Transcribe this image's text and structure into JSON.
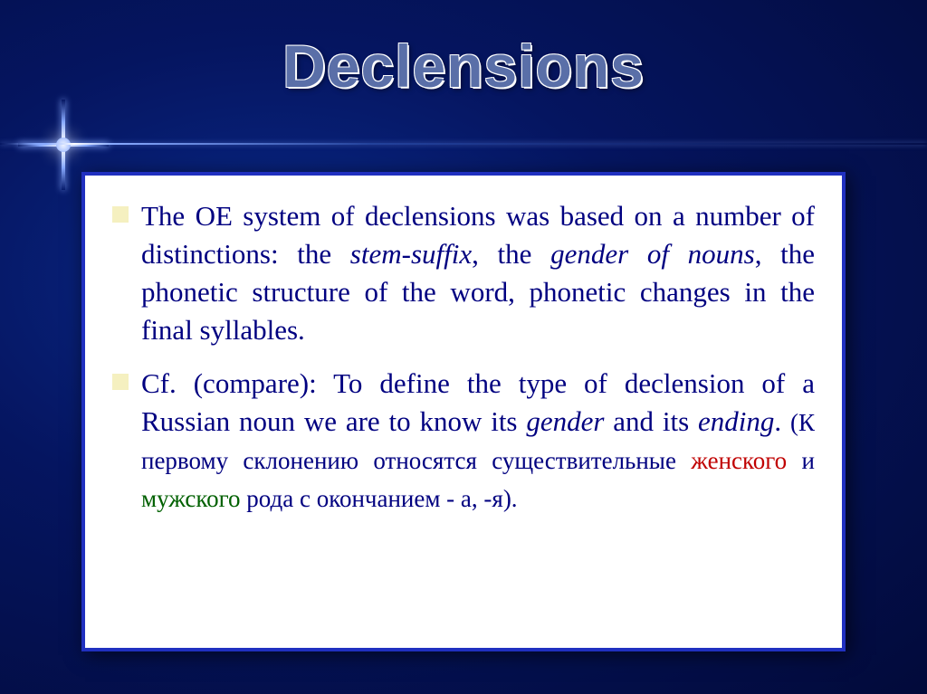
{
  "title": "Declensions",
  "background": {
    "gradient_center": "#0a2a8a",
    "gradient_mid": "#051560",
    "gradient_edge": "#020a3a"
  },
  "content_box": {
    "background": "#ffffff",
    "border_color": "#2030c0",
    "border_width": 4
  },
  "bullet_color": "#f5f0c0",
  "text_color": "#000080",
  "title_color": "#5a6fa8",
  "title_fontsize": 66,
  "body_fontsize": 31,
  "small_fontsize": 27,
  "red_color": "#c00000",
  "green_color": "#006000",
  "paragraphs": [
    {
      "t1": "The OE system of declensions was based on a number of distinctions: the ",
      "i1": "stem-suffix",
      "t2": ", the ",
      "i2": "gender of nouns",
      "t3": ", the phonetic structure of the word, phonetic changes in the final syllables."
    },
    {
      "t1": " Cf. (compare): To define the type of declension of a Russian noun we are to know its ",
      "i1": "gender",
      "t2": " and its ",
      "i2": "ending",
      "t3": ". ",
      "s_pre": "(К первому склонению относятся существительные ",
      "s_red": "женского",
      "s_mid": " и ",
      "s_green": "мужского",
      "s_post": " рода с окончанием - а, -я)."
    }
  ]
}
